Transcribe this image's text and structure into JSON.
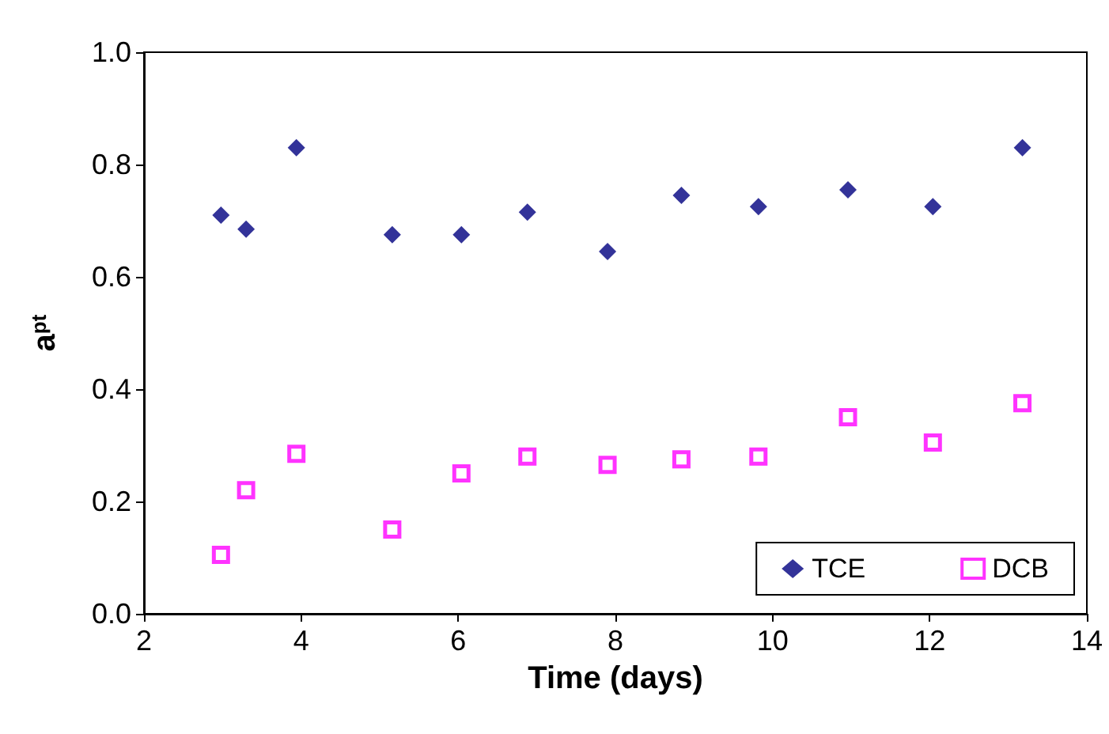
{
  "chart_data": {
    "type": "scatter",
    "xlabel": "Time (days)",
    "ylabel": "a$^{pt}$",
    "xlim": [
      2,
      14
    ],
    "xticks": [
      2,
      4,
      6,
      8,
      10,
      12,
      14
    ],
    "ylim": [
      0,
      1
    ],
    "yticks": [
      {
        "value": 0,
        "label": "0.0"
      },
      {
        "value": 0.2,
        "label": "0.2"
      },
      {
        "value": 0.4,
        "label": "0.4"
      },
      {
        "value": 0.6,
        "label": "0.6"
      },
      {
        "value": 0.8,
        "label": "0.8"
      },
      {
        "value": 1,
        "label": "1.0"
      }
    ],
    "grid": false,
    "legend": "bottom right",
    "x": [
      2.98,
      3.3,
      3.94,
      5.16,
      6.04,
      6.88,
      7.9,
      8.84,
      9.82,
      10.96,
      12.04,
      13.18
    ],
    "series": [
      {
        "name": "TCE",
        "color": "#000080",
        "marker": "diamond",
        "values": [
          0.71,
          0.685,
          0.83,
          0.675,
          0.675,
          0.715,
          0.645,
          0.745,
          0.725,
          0.755,
          0.725,
          0.83
        ]
      },
      {
        "name": "DCB",
        "color": "#ff00ff",
        "marker": "square",
        "values": [
          0.105,
          0.22,
          0.285,
          0.15,
          0.25,
          0.28,
          0.265,
          0.275,
          0.28,
          0.35,
          0.305,
          0.375
        ]
      }
    ]
  }
}
